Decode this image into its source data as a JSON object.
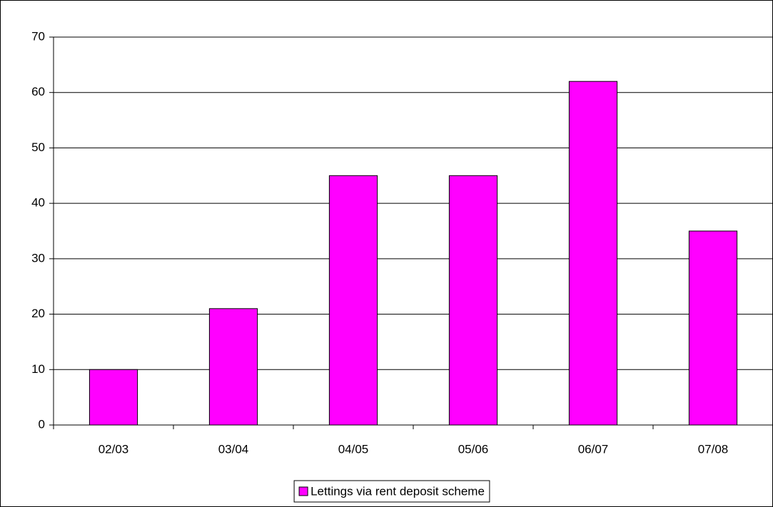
{
  "chart_data": {
    "type": "bar",
    "categories": [
      "02/03",
      "03/04",
      "04/05",
      "05/06",
      "06/07",
      "07/08"
    ],
    "series": [
      {
        "name": "Lettings via rent deposit scheme",
        "color": "#ff00ff",
        "values": [
          10,
          21,
          45,
          45,
          62,
          35
        ]
      }
    ],
    "ylim": [
      0,
      70
    ],
    "yticks": [
      0,
      10,
      20,
      30,
      40,
      50,
      60,
      70
    ],
    "grid": true,
    "legend": "bottom"
  }
}
